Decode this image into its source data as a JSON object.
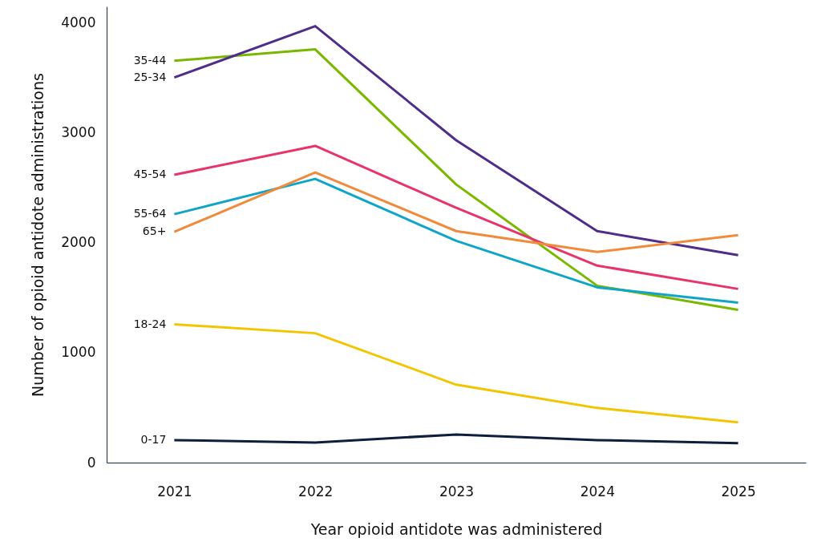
{
  "chart_data": {
    "type": "line",
    "xlabel": "Year opioid antidote was administered",
    "ylabel": "Number of opioid antidote administrations",
    "categories": [
      "2021",
      "2022",
      "2023",
      "2024",
      "2025"
    ],
    "ylim": [
      0,
      4150
    ],
    "yticks": [
      0,
      1000,
      2000,
      3000,
      4000
    ],
    "series": [
      {
        "name": "35-44",
        "color": "#7ab800",
        "values": [
          3656,
          3759,
          2530,
          1609,
          1389
        ]
      },
      {
        "name": "25-34",
        "color": "#4f2d8a",
        "values": [
          3503,
          3971,
          2932,
          2106,
          1887
        ]
      },
      {
        "name": "45-54",
        "color": "#e8336b",
        "values": [
          2618,
          2881,
          2318,
          1792,
          1580
        ]
      },
      {
        "name": "55-64",
        "color": "#0ea5c9",
        "values": [
          2260,
          2581,
          2018,
          1594,
          1455
        ]
      },
      {
        "name": "65+",
        "color": "#f08a3c",
        "values": [
          2099,
          2640,
          2106,
          1916,
          2069
        ]
      },
      {
        "name": "18-24",
        "color": "#f2c500",
        "values": [
          1258,
          1177,
          709,
          497,
          366
        ]
      },
      {
        "name": "0-17",
        "color": "#0d1f3c",
        "values": [
          205,
          183,
          256,
          205,
          176
        ]
      }
    ]
  }
}
